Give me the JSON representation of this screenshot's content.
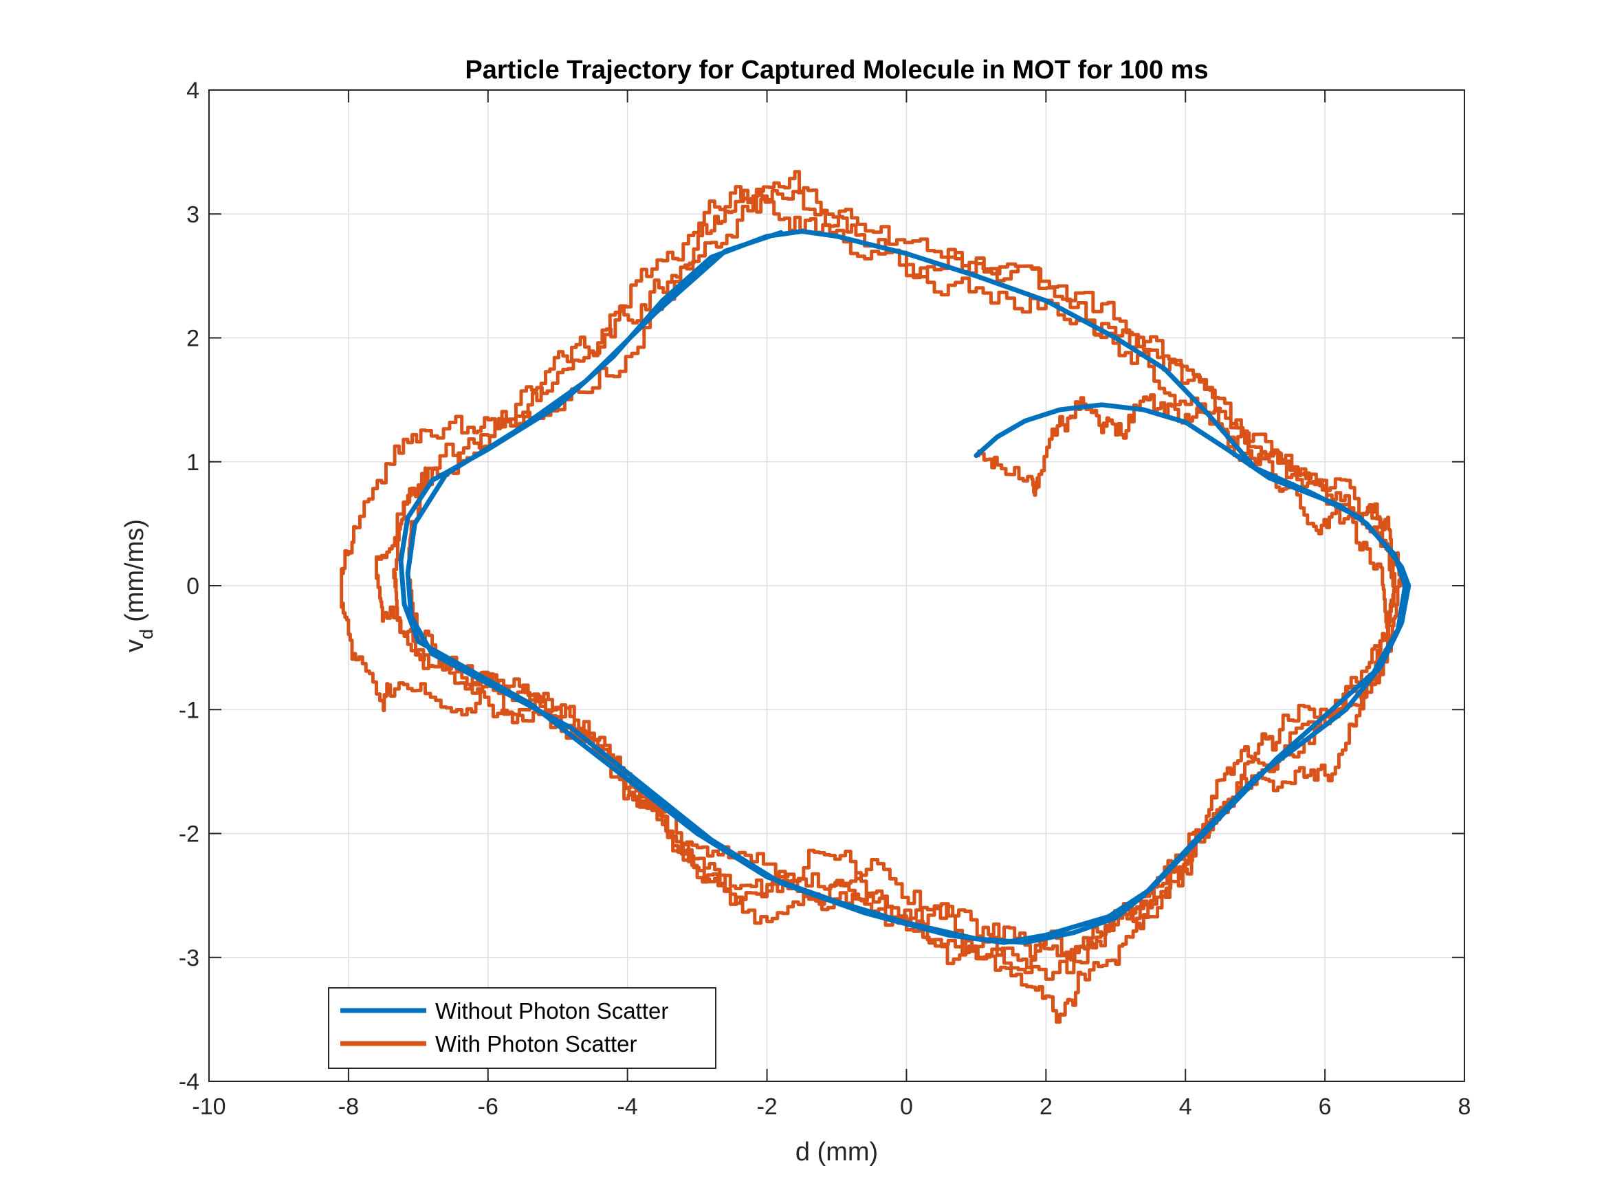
{
  "chart_data": {
    "type": "line",
    "title": "Particle Trajectory for Captured Molecule in MOT for 100 ms",
    "xlabel": "d (mm)",
    "ylabel": {
      "main": "v",
      "sub": "d",
      "unit": "(mm/ms)"
    },
    "xlim": [
      -10,
      8
    ],
    "ylim": [
      -4,
      4
    ],
    "xticks": [
      -10,
      -8,
      -6,
      -4,
      -2,
      0,
      2,
      4,
      6,
      8
    ],
    "yticks": [
      -4,
      -3,
      -2,
      -1,
      0,
      1,
      2,
      3,
      4
    ],
    "grid": true,
    "legend_position": "bottom-left",
    "series": [
      {
        "name": "Without Photon Scatter",
        "color": "#0072BD",
        "noise": 0,
        "points": [
          [
            1.0,
            1.05
          ],
          [
            1.3,
            1.2
          ],
          [
            1.7,
            1.33
          ],
          [
            2.2,
            1.42
          ],
          [
            2.8,
            1.46
          ],
          [
            3.4,
            1.42
          ],
          [
            4.0,
            1.32
          ],
          [
            4.6,
            1.1
          ],
          [
            5.2,
            0.87
          ],
          [
            5.7,
            0.76
          ],
          [
            6.2,
            0.65
          ],
          [
            6.6,
            0.5
          ],
          [
            6.9,
            0.3
          ],
          [
            7.1,
            0.15
          ],
          [
            7.2,
            0.0
          ],
          [
            7.1,
            -0.3
          ],
          [
            6.8,
            -0.65
          ],
          [
            6.3,
            -1.0
          ],
          [
            5.6,
            -1.3
          ],
          [
            5.0,
            -1.55
          ],
          [
            4.4,
            -1.9
          ],
          [
            3.9,
            -2.2
          ],
          [
            3.4,
            -2.5
          ],
          [
            3.0,
            -2.68
          ],
          [
            2.4,
            -2.8
          ],
          [
            1.7,
            -2.88
          ],
          [
            1.0,
            -2.85
          ],
          [
            0.0,
            -2.72
          ],
          [
            -1.0,
            -2.55
          ],
          [
            -2.0,
            -2.35
          ],
          [
            -3.0,
            -2.0
          ],
          [
            -3.8,
            -1.65
          ],
          [
            -4.6,
            -1.3
          ],
          [
            -5.4,
            -0.95
          ],
          [
            -6.2,
            -0.7
          ],
          [
            -7.0,
            -0.45
          ],
          [
            -7.2,
            -0.15
          ],
          [
            -7.25,
            0.2
          ],
          [
            -7.15,
            0.55
          ],
          [
            -6.8,
            0.85
          ],
          [
            -6.0,
            1.1
          ],
          [
            -5.0,
            1.45
          ],
          [
            -4.2,
            1.85
          ],
          [
            -3.5,
            2.3
          ],
          [
            -2.8,
            2.65
          ],
          [
            -2.0,
            2.82
          ],
          [
            -1.5,
            2.86
          ],
          [
            -1.0,
            2.82
          ],
          [
            0.0,
            2.68
          ],
          [
            1.0,
            2.5
          ],
          [
            2.0,
            2.3
          ],
          [
            3.0,
            2.0
          ],
          [
            3.7,
            1.75
          ],
          [
            4.3,
            1.4
          ],
          [
            5.0,
            0.95
          ],
          [
            5.8,
            0.75
          ],
          [
            6.5,
            0.55
          ],
          [
            7.0,
            0.25
          ],
          [
            7.15,
            0.0
          ],
          [
            7.05,
            -0.35
          ],
          [
            6.7,
            -0.7
          ],
          [
            6.0,
            -1.05
          ],
          [
            5.3,
            -1.4
          ],
          [
            4.7,
            -1.75
          ],
          [
            4.1,
            -2.1
          ],
          [
            3.5,
            -2.45
          ],
          [
            2.9,
            -2.67
          ],
          [
            2.0,
            -2.82
          ],
          [
            1.4,
            -2.88
          ],
          [
            0.6,
            -2.82
          ],
          [
            -0.6,
            -2.64
          ],
          [
            -1.8,
            -2.4
          ],
          [
            -2.8,
            -2.05
          ],
          [
            -3.8,
            -1.6
          ],
          [
            -4.8,
            -1.15
          ],
          [
            -5.8,
            -0.85
          ],
          [
            -6.8,
            -0.55
          ],
          [
            -7.1,
            -0.25
          ],
          [
            -7.15,
            0.1
          ],
          [
            -7.05,
            0.5
          ],
          [
            -6.6,
            0.9
          ],
          [
            -5.6,
            1.25
          ],
          [
            -4.6,
            1.65
          ],
          [
            -3.6,
            2.2
          ],
          [
            -2.6,
            2.7
          ],
          [
            -1.8,
            2.85
          ]
        ]
      },
      {
        "name": "With Photon Scatter",
        "color": "#D95319",
        "noise": 0.09,
        "points": [
          [
            1.0,
            1.05
          ],
          [
            1.3,
            0.95
          ],
          [
            1.8,
            0.88
          ],
          [
            1.9,
            0.85
          ],
          [
            2.2,
            1.25
          ],
          [
            2.5,
            1.5
          ],
          [
            2.8,
            1.35
          ],
          [
            3.0,
            1.2
          ],
          [
            3.3,
            1.45
          ],
          [
            3.7,
            1.4
          ],
          [
            4.1,
            1.38
          ],
          [
            4.6,
            1.2
          ],
          [
            5.0,
            1.05
          ],
          [
            5.4,
            0.8
          ],
          [
            5.8,
            0.55
          ],
          [
            6.1,
            0.5
          ],
          [
            6.6,
            0.65
          ],
          [
            6.9,
            0.45
          ],
          [
            7.0,
            0.0
          ],
          [
            6.9,
            -0.4
          ],
          [
            6.6,
            -0.75
          ],
          [
            6.0,
            -1.05
          ],
          [
            5.4,
            -1.15
          ],
          [
            5.0,
            -1.3
          ],
          [
            4.6,
            -1.55
          ],
          [
            4.3,
            -1.85
          ],
          [
            3.9,
            -2.25
          ],
          [
            3.5,
            -2.5
          ],
          [
            3.1,
            -2.65
          ],
          [
            2.6,
            -2.85
          ],
          [
            2.1,
            -2.95
          ],
          [
            1.6,
            -3.0
          ],
          [
            1.0,
            -2.95
          ],
          [
            0.2,
            -2.75
          ],
          [
            -0.6,
            -2.6
          ],
          [
            -1.3,
            -2.45
          ],
          [
            -2.0,
            -2.4
          ],
          [
            -2.6,
            -2.35
          ],
          [
            -3.2,
            -2.1
          ],
          [
            -3.8,
            -1.75
          ],
          [
            -4.3,
            -1.4
          ],
          [
            -4.8,
            -1.15
          ],
          [
            -5.4,
            -0.9
          ],
          [
            -6.0,
            -0.75
          ],
          [
            -6.6,
            -0.58
          ],
          [
            -7.1,
            -0.4
          ],
          [
            -7.5,
            -0.2
          ],
          [
            -7.6,
            0.2
          ],
          [
            -7.3,
            0.6
          ],
          [
            -6.6,
            1.0
          ],
          [
            -5.8,
            1.3
          ],
          [
            -5.0,
            1.6
          ],
          [
            -4.2,
            1.8
          ],
          [
            -3.5,
            2.3
          ],
          [
            -2.8,
            2.75
          ],
          [
            -2.2,
            3.1
          ],
          [
            -1.6,
            3.25
          ],
          [
            -1.1,
            3.0
          ],
          [
            -0.6,
            2.8
          ],
          [
            0.2,
            2.6
          ],
          [
            1.0,
            2.55
          ],
          [
            1.8,
            2.45
          ],
          [
            2.8,
            2.2
          ],
          [
            3.5,
            1.95
          ],
          [
            4.2,
            1.6
          ],
          [
            4.8,
            1.25
          ],
          [
            5.5,
            1.0
          ],
          [
            6.1,
            0.75
          ],
          [
            6.6,
            0.45
          ],
          [
            7.0,
            0.35
          ],
          [
            7.1,
            0.0
          ],
          [
            6.95,
            -0.6
          ],
          [
            6.5,
            -1.1
          ],
          [
            6.1,
            -1.45
          ],
          [
            5.7,
            -1.55
          ],
          [
            5.2,
            -1.6
          ],
          [
            4.8,
            -1.75
          ],
          [
            4.4,
            -2.05
          ],
          [
            3.9,
            -2.45
          ],
          [
            3.4,
            -2.75
          ],
          [
            3.0,
            -3.05
          ],
          [
            2.5,
            -3.25
          ],
          [
            2.2,
            -3.45
          ],
          [
            1.8,
            -3.25
          ],
          [
            1.2,
            -3.0
          ],
          [
            0.5,
            -2.9
          ],
          [
            -0.2,
            -2.6
          ],
          [
            -0.8,
            -2.3
          ],
          [
            -1.4,
            -2.6
          ],
          [
            -2.0,
            -2.75
          ],
          [
            -2.7,
            -2.4
          ],
          [
            -3.3,
            -2.1
          ],
          [
            -3.9,
            -1.6
          ],
          [
            -4.3,
            -1.3
          ],
          [
            -4.7,
            -1.1
          ],
          [
            -5.2,
            -1.05
          ],
          [
            -5.8,
            -1.05
          ],
          [
            -6.3,
            -0.95
          ],
          [
            -6.9,
            -0.75
          ],
          [
            -7.4,
            -0.85
          ],
          [
            -7.5,
            -1.0
          ],
          [
            -7.9,
            -0.6
          ],
          [
            -8.1,
            -0.2
          ],
          [
            -8.1,
            0.15
          ],
          [
            -7.9,
            0.55
          ],
          [
            -7.4,
            1.05
          ],
          [
            -6.9,
            1.3
          ],
          [
            -6.2,
            1.25
          ],
          [
            -5.8,
            1.35
          ],
          [
            -5.3,
            1.55
          ],
          [
            -4.8,
            1.85
          ],
          [
            -4.3,
            2.05
          ],
          [
            -3.8,
            2.3
          ],
          [
            -3.3,
            2.55
          ],
          [
            -2.8,
            2.85
          ],
          [
            -2.4,
            3.15
          ],
          [
            -1.9,
            3.05
          ],
          [
            -1.3,
            2.85
          ],
          [
            -0.5,
            2.65
          ],
          [
            0.3,
            2.5
          ],
          [
            1.1,
            2.4
          ],
          [
            2.0,
            2.3
          ],
          [
            2.7,
            2.05
          ],
          [
            3.4,
            1.8
          ],
          [
            4.0,
            1.5
          ],
          [
            4.7,
            1.15
          ],
          [
            5.3,
            0.9
          ],
          [
            5.9,
            0.7
          ],
          [
            6.4,
            0.4
          ],
          [
            6.8,
            0.1
          ],
          [
            6.9,
            -0.35
          ],
          [
            6.7,
            -0.7
          ],
          [
            6.2,
            -1.05
          ],
          [
            5.5,
            -1.3
          ],
          [
            4.9,
            -1.5
          ],
          [
            4.5,
            -1.8
          ],
          [
            4.1,
            -2.15
          ],
          [
            3.6,
            -2.5
          ],
          [
            3.1,
            -2.75
          ],
          [
            2.6,
            -3.0
          ],
          [
            1.8,
            -3.1
          ],
          [
            1.0,
            -2.85
          ],
          [
            0.2,
            -2.55
          ],
          [
            -0.5,
            -2.35
          ],
          [
            -1.1,
            -2.15
          ],
          [
            -1.7,
            -2.35
          ],
          [
            -2.3,
            -2.5
          ],
          [
            -2.9,
            -2.3
          ],
          [
            -3.5,
            -1.9
          ],
          [
            -4.1,
            -1.5
          ],
          [
            -4.7,
            -1.05
          ],
          [
            -5.2,
            -0.9
          ],
          [
            -5.8,
            -0.85
          ],
          [
            -6.4,
            -0.7
          ],
          [
            -7.0,
            -0.5
          ],
          [
            -7.3,
            -0.2
          ],
          [
            -7.35,
            0.2
          ],
          [
            -7.2,
            0.55
          ],
          [
            -6.8,
            0.9
          ],
          [
            -6.2,
            1.15
          ],
          [
            -5.6,
            1.45
          ],
          [
            -5.0,
            1.7
          ],
          [
            -4.4,
            2.05
          ],
          [
            -3.8,
            2.5
          ],
          [
            -3.2,
            2.8
          ],
          [
            -2.6,
            3.1
          ],
          [
            -2.0,
            3.2
          ],
          [
            -1.4,
            3.05
          ],
          [
            -0.7,
            2.85
          ],
          [
            0.2,
            2.7
          ],
          [
            1.0,
            2.55
          ],
          [
            1.9,
            2.4
          ],
          [
            2.8,
            2.1
          ],
          [
            3.6,
            1.85
          ],
          [
            4.3,
            1.5
          ],
          [
            5.0,
            1.15
          ],
          [
            5.7,
            0.95
          ],
          [
            6.3,
            0.75
          ],
          [
            6.8,
            0.45
          ],
          [
            7.0,
            0.0
          ],
          [
            6.9,
            -0.45
          ],
          [
            6.6,
            -0.85
          ],
          [
            6.0,
            -1.15
          ],
          [
            5.4,
            -1.4
          ],
          [
            4.8,
            -1.65
          ],
          [
            4.3,
            -1.95
          ],
          [
            3.8,
            -2.35
          ],
          [
            3.3,
            -2.6
          ],
          [
            2.8,
            -2.8
          ],
          [
            2.3,
            -2.9
          ],
          [
            1.7,
            -2.85
          ],
          [
            1.1,
            -2.75
          ],
          [
            0.4,
            -2.65
          ],
          [
            -0.3,
            -2.55
          ],
          [
            -1.0,
            -2.45
          ],
          [
            -1.7,
            -2.3
          ],
          [
            -2.4,
            -2.2
          ],
          [
            -3.0,
            -2.0
          ],
          [
            -3.6,
            -1.75
          ],
          [
            -4.2,
            -1.45
          ],
          [
            -4.8,
            -1.15
          ],
          [
            -5.4,
            -0.95
          ],
          [
            -6.0,
            -0.8
          ],
          [
            -6.6,
            -0.6
          ],
          [
            -7.0,
            -0.35
          ],
          [
            -7.15,
            0.0
          ],
          [
            -7.1,
            0.45
          ],
          [
            -6.9,
            0.95
          ]
        ]
      }
    ]
  }
}
